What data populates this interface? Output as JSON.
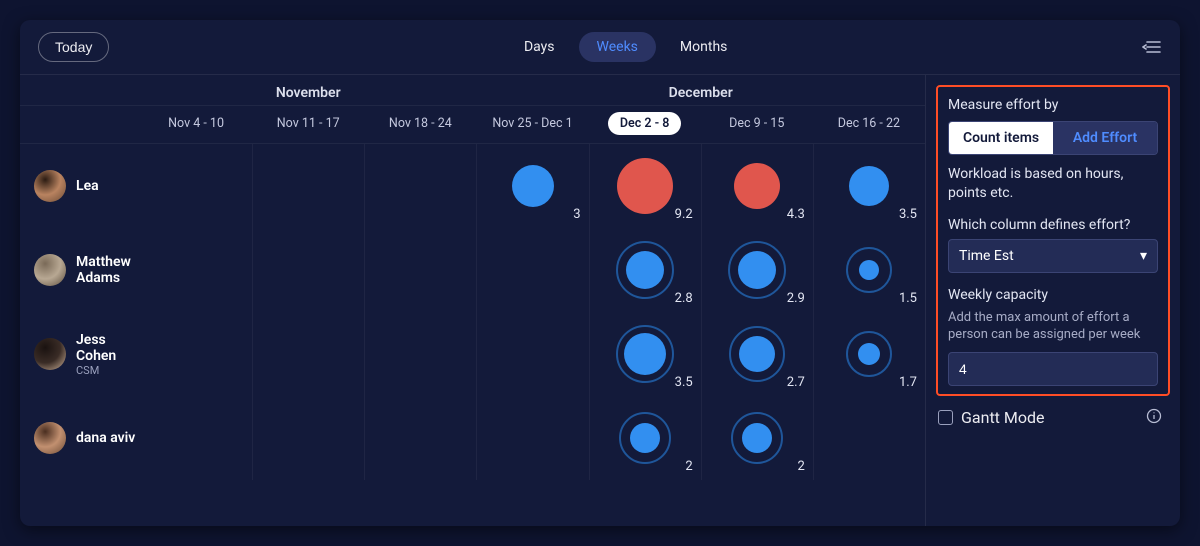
{
  "colors": {
    "blue": "#328ff0",
    "blue_ring": "#1f569a",
    "red": "#e0564d",
    "white": "#ffffff",
    "text": "#e3e6f3",
    "accent": "#4f8cff",
    "highlight_border": "#ff4d26"
  },
  "avatars": {
    "p0": {
      "stops": [
        "#2b1b12",
        "#b98360",
        "#6a4a35"
      ]
    },
    "p1": {
      "stops": [
        "#7a6a58",
        "#b8a893",
        "#5a4c3c"
      ]
    },
    "p2": {
      "stops": [
        "#1a1210",
        "#3a2c26",
        "#d0b49a"
      ]
    },
    "p3": {
      "stops": [
        "#4a2e20",
        "#c29070",
        "#6b4a35"
      ]
    }
  },
  "topbar": {
    "today_label": "Today",
    "tabs": {
      "days": "Days",
      "weeks": "Weeks",
      "months": "Months"
    },
    "active_tab": "weeks"
  },
  "months": [
    {
      "label": "November",
      "span": 3
    },
    {
      "label": "December",
      "span": 4
    }
  ],
  "weeks": [
    {
      "label": "Nov 4 - 10",
      "current": false
    },
    {
      "label": "Nov 11 - 17",
      "current": false
    },
    {
      "label": "Nov 18 - 24",
      "current": false
    },
    {
      "label": "Nov 25 - Dec 1",
      "current": false
    },
    {
      "label": "Dec 2 - 8",
      "current": true
    },
    {
      "label": "Dec 9 - 15",
      "current": false
    },
    {
      "label": "Dec 16 - 22",
      "current": false
    }
  ],
  "people": [
    {
      "name": "Lea",
      "subtitle": "",
      "avatar": "p0",
      "cells": [
        null,
        null,
        null,
        {
          "val": "3",
          "size": 42,
          "color": "blue",
          "ring": false
        },
        {
          "val": "9.2",
          "size": 56,
          "color": "red",
          "ring": false
        },
        {
          "val": "4.3",
          "size": 46,
          "color": "red",
          "ring": false
        },
        {
          "val": "3.5",
          "size": 40,
          "color": "blue",
          "ring": false
        }
      ]
    },
    {
      "name": "Matthew Adams",
      "subtitle": "",
      "avatar": "p1",
      "cells": [
        null,
        null,
        null,
        null,
        {
          "val": "2.8",
          "size": 38,
          "color": "blue",
          "ring": 58
        },
        {
          "val": "2.9",
          "size": 38,
          "color": "blue",
          "ring": 58
        },
        {
          "val": "1.5",
          "size": 20,
          "color": "blue",
          "ring": 46
        }
      ]
    },
    {
      "name": "Jess Cohen",
      "subtitle": "CSM",
      "avatar": "p2",
      "cells": [
        null,
        null,
        null,
        null,
        {
          "val": "3.5",
          "size": 42,
          "color": "blue",
          "ring": 58
        },
        {
          "val": "2.7",
          "size": 36,
          "color": "blue",
          "ring": 56
        },
        {
          "val": "1.7",
          "size": 22,
          "color": "blue",
          "ring": 46
        }
      ]
    },
    {
      "name": "dana aviv",
      "subtitle": "",
      "avatar": "p3",
      "cells": [
        null,
        null,
        null,
        null,
        {
          "val": "2",
          "size": 30,
          "color": "blue",
          "ring": 52
        },
        {
          "val": "2",
          "size": 30,
          "color": "blue",
          "ring": 52
        },
        null
      ]
    }
  ],
  "side": {
    "measure_label": "Measure effort by",
    "seg_left": "Count items",
    "seg_right": "Add Effort",
    "desc": "Workload is based on hours, points etc.",
    "col_label": "Which column defines effort?",
    "col_value": "Time Est",
    "cap_label": "Weekly capacity",
    "cap_help": "Add the max amount of effort a person can be assigned per week",
    "cap_value": "4",
    "gantt_label": "Gantt Mode"
  }
}
